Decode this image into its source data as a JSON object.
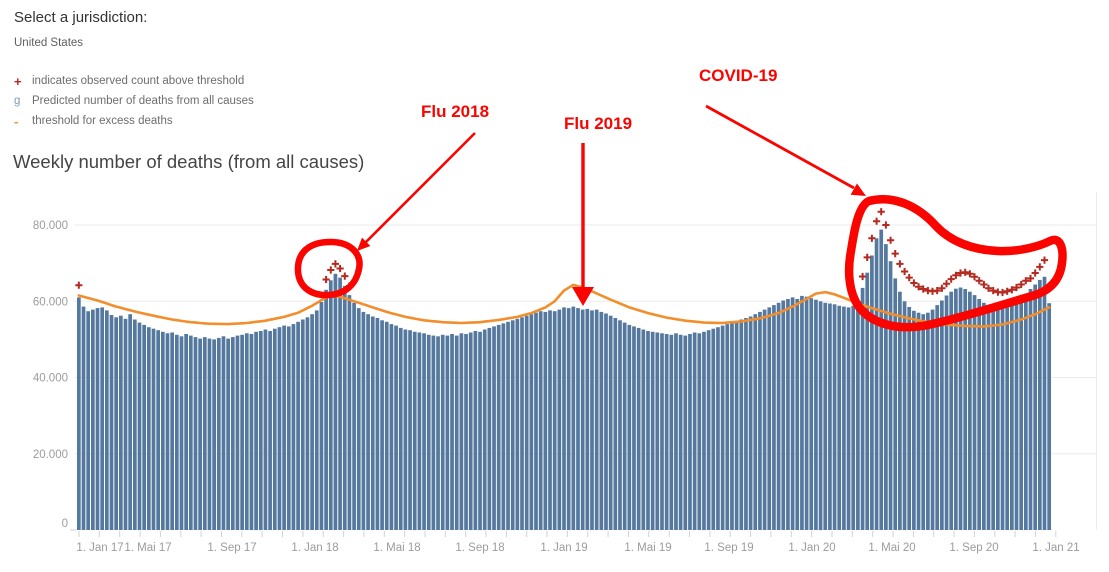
{
  "header": {
    "jurisdiction_label": "Select a jurisdiction:",
    "jurisdiction_value": "United States"
  },
  "legend": {
    "items": [
      {
        "symbol": "+",
        "label": "indicates observed count above threshold"
      },
      {
        "symbol": "g",
        "label": "Predicted number of deaths from all causes"
      },
      {
        "symbol": "-",
        "label": "threshold for excess deaths"
      }
    ]
  },
  "title": "Weekly number of deaths (from all causes)",
  "annotations": {
    "flu2018": "Flu 2018",
    "flu2019": "Flu 2019",
    "covid": "COVID-19"
  },
  "colors": {
    "bar": "#55789e",
    "threshold": "#f28e2b",
    "plus": "#b42a20",
    "annotation": "#fa0400",
    "grid": "#ebebeb",
    "axis_text": "#9c9c9c",
    "tick": "#d2d2d2",
    "legend_bar_symbol": "#7d9cba"
  },
  "chart_data": {
    "type": "bar",
    "title": "Weekly number of deaths (from all causes)",
    "x_unit": "week",
    "x_range_label": [
      "1. Jan 17",
      "1. Jan 21"
    ],
    "values_unit": "deaths per week (thousands)",
    "ylim": [
      0,
      86
    ],
    "grid": "horizontal",
    "legend_position": "top-left",
    "y_ticks": [
      {
        "label": "80.000",
        "value": 80
      },
      {
        "label": "60.000",
        "value": 60
      },
      {
        "label": "40.000",
        "value": 40
      },
      {
        "label": "20.000",
        "value": 20
      },
      {
        "label": "0",
        "value": 0
      }
    ],
    "x_ticks": [
      "1. Jan 17",
      "1. Mai 17",
      "1. Sep 17",
      "1. Jan 18",
      "1. Mai 18",
      "1. Sep 18",
      "1. Jan 19",
      "1. Mai 19",
      "1. Sep 19",
      "1. Jan 20",
      "1. Mai 20",
      "1. Sep 20",
      "1. Jan 21"
    ],
    "series": [
      {
        "name": "Predicted number of deaths from all causes",
        "type": "bar",
        "values": [
          61.0,
          58.6,
          57.4,
          57.8,
          58.2,
          58.4,
          57.6,
          56.4,
          55.8,
          56.2,
          55.4,
          56.6,
          55.2,
          54.4,
          53.8,
          53.2,
          52.8,
          52.4,
          52.0,
          51.6,
          51.8,
          51.2,
          50.8,
          51.4,
          51.0,
          50.6,
          50.2,
          50.6,
          50.2,
          50.0,
          50.4,
          50.8,
          50.2,
          50.6,
          51.0,
          51.2,
          51.6,
          51.4,
          52.0,
          52.2,
          52.6,
          52.2,
          52.8,
          53.2,
          53.6,
          53.4,
          54.0,
          54.6,
          55.2,
          55.8,
          56.6,
          57.6,
          59.8,
          63.0,
          65.5,
          67.2,
          66.2,
          64.0,
          61.6,
          59.6,
          58.2,
          57.2,
          56.6,
          56.0,
          55.6,
          55.0,
          54.6,
          54.0,
          53.6,
          53.0,
          52.6,
          52.4,
          52.0,
          51.8,
          51.6,
          51.2,
          51.0,
          50.8,
          51.2,
          51.0,
          51.4,
          51.0,
          51.6,
          51.4,
          51.8,
          52.2,
          52.0,
          52.6,
          53.0,
          53.4,
          53.8,
          54.2,
          54.6,
          55.0,
          55.4,
          55.8,
          56.2,
          56.6,
          57.0,
          57.4,
          57.2,
          57.6,
          57.4,
          57.8,
          58.4,
          58.2,
          58.6,
          58.2,
          57.8,
          58.0,
          57.6,
          57.8,
          57.2,
          56.8,
          56.2,
          55.6,
          55.0,
          54.4,
          53.8,
          53.4,
          53.0,
          52.6,
          52.2,
          52.0,
          51.8,
          51.6,
          51.4,
          51.2,
          51.6,
          51.2,
          51.0,
          51.4,
          51.8,
          51.6,
          52.0,
          52.4,
          52.8,
          53.2,
          53.6,
          54.0,
          54.4,
          54.8,
          55.2,
          55.6,
          56.0,
          56.6,
          57.2,
          57.8,
          58.4,
          59.0,
          59.6,
          60.2,
          60.6,
          61.0,
          60.6,
          61.4,
          61.2,
          60.8,
          60.4,
          60.0,
          59.6,
          59.4,
          59.2,
          58.8,
          58.6,
          58.4,
          58.8,
          60.2,
          63.5,
          67.5,
          72.0,
          76.5,
          78.8,
          75.0,
          70.5,
          66.0,
          62.5,
          60.0,
          58.5,
          57.5,
          57.0,
          56.6,
          57.0,
          57.8,
          59.0,
          60.2,
          61.5,
          62.5,
          63.3,
          63.6,
          63.2,
          62.5,
          61.6,
          60.6,
          59.6,
          58.8,
          58.2,
          57.8,
          58.0,
          58.4,
          59.0,
          59.8,
          60.8,
          62.0,
          63.2,
          64.4,
          65.6,
          66.4,
          59.5
        ]
      },
      {
        "name": "threshold for excess deaths",
        "type": "line",
        "anchors": [
          [
            0,
            61.5
          ],
          [
            4,
            60.2
          ],
          [
            8,
            58.6
          ],
          [
            12,
            57.3
          ],
          [
            16,
            56.2
          ],
          [
            20,
            55.2
          ],
          [
            24,
            54.5
          ],
          [
            28,
            54.1
          ],
          [
            32,
            54.0
          ],
          [
            36,
            54.3
          ],
          [
            40,
            54.9
          ],
          [
            44,
            55.9
          ],
          [
            47,
            57.0
          ],
          [
            50,
            58.8
          ],
          [
            52,
            60.3
          ],
          [
            54,
            61.5
          ],
          [
            56,
            61.2
          ],
          [
            58,
            60.4
          ],
          [
            62,
            58.8
          ],
          [
            66,
            57.2
          ],
          [
            70,
            55.9
          ],
          [
            74,
            55.0
          ],
          [
            78,
            54.5
          ],
          [
            82,
            54.3
          ],
          [
            86,
            54.5
          ],
          [
            90,
            55.1
          ],
          [
            94,
            55.9
          ],
          [
            97,
            56.9
          ],
          [
            100,
            58.4
          ],
          [
            102,
            60.0
          ],
          [
            104,
            62.8
          ],
          [
            106,
            64.3
          ],
          [
            108,
            63.6
          ],
          [
            110,
            62.6
          ],
          [
            114,
            60.4
          ],
          [
            118,
            58.4
          ],
          [
            122,
            56.9
          ],
          [
            126,
            55.7
          ],
          [
            130,
            54.9
          ],
          [
            134,
            54.4
          ],
          [
            138,
            54.3
          ],
          [
            142,
            54.7
          ],
          [
            146,
            55.5
          ],
          [
            150,
            56.9
          ],
          [
            153,
            58.6
          ],
          [
            156,
            60.6
          ],
          [
            158,
            62.0
          ],
          [
            160,
            62.4
          ],
          [
            162,
            61.8
          ],
          [
            164,
            60.9
          ],
          [
            167,
            59.4
          ],
          [
            170,
            58.2
          ],
          [
            174,
            56.7
          ],
          [
            178,
            55.5
          ],
          [
            182,
            54.5
          ],
          [
            186,
            53.9
          ],
          [
            190,
            53.5
          ],
          [
            194,
            53.4
          ],
          [
            198,
            53.9
          ],
          [
            202,
            55.2
          ],
          [
            205,
            56.6
          ],
          [
            208,
            58.4
          ]
        ]
      },
      {
        "name": "observed count above threshold",
        "type": "plus-markers",
        "points": [
          [
            0,
            64.2
          ],
          [
            53,
            65.7
          ],
          [
            54,
            68.2
          ],
          [
            55,
            69.8
          ],
          [
            56,
            68.6
          ],
          [
            57,
            66.6
          ],
          [
            58,
            64.0
          ],
          [
            168,
            66.5
          ],
          [
            169,
            71.5
          ],
          [
            170,
            76.5
          ],
          [
            171,
            81.0
          ],
          [
            172,
            83.5
          ],
          [
            173,
            80.0
          ],
          [
            174,
            76.0
          ],
          [
            175,
            72.5
          ],
          [
            176,
            69.8
          ],
          [
            177,
            67.8
          ],
          [
            178,
            66.2
          ],
          [
            179,
            64.8
          ],
          [
            180,
            63.8
          ],
          [
            181,
            63.2
          ],
          [
            182,
            62.8
          ],
          [
            183,
            62.6
          ],
          [
            184,
            62.8
          ],
          [
            185,
            63.4
          ],
          [
            186,
            64.6
          ],
          [
            187,
            65.8
          ],
          [
            188,
            66.8
          ],
          [
            189,
            67.4
          ],
          [
            190,
            67.6
          ],
          [
            191,
            67.2
          ],
          [
            192,
            66.4
          ],
          [
            193,
            65.4
          ],
          [
            194,
            64.4
          ],
          [
            195,
            63.4
          ],
          [
            196,
            62.8
          ],
          [
            197,
            62.4
          ],
          [
            198,
            62.3
          ],
          [
            199,
            62.6
          ],
          [
            200,
            63.0
          ],
          [
            201,
            63.6
          ],
          [
            202,
            64.4
          ],
          [
            203,
            65.4
          ],
          [
            204,
            66.0
          ],
          [
            205,
            67.4
          ],
          [
            206,
            69.0
          ],
          [
            207,
            70.8
          ],
          [
            208,
            63.5
          ]
        ]
      }
    ]
  }
}
